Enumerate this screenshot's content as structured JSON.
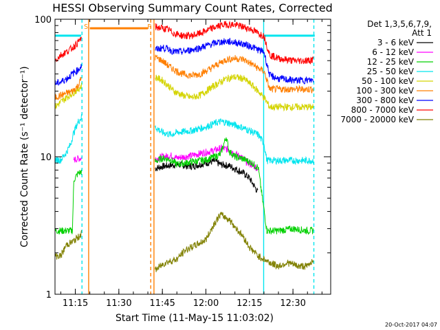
{
  "chart_data": {
    "type": "line",
    "title": "HESSI Observing Summary Count Rates, Corrected",
    "xlabel": "Start Time (11-May-15 11:03:02)",
    "ylabel": "Corrected Count Rate (s⁻¹ detector⁻¹)",
    "y_scale": "log",
    "ylim": [
      1,
      100
    ],
    "xlim_min": [
      8,
      103
    ],
    "x_ticks": [
      {
        "label": "11:15",
        "min": 15
      },
      {
        "label": "11:30",
        "min": 30
      },
      {
        "label": "11:45",
        "min": 45
      },
      {
        "label": "12:00",
        "min": 60
      },
      {
        "label": "12:15",
        "min": 75
      },
      {
        "label": "12:30",
        "min": 90
      }
    ],
    "y_ticks": [
      {
        "label": "1",
        "value": 1
      },
      {
        "label": "10",
        "value": 10
      },
      {
        "label": "100",
        "value": 100
      }
    ],
    "legend_title": [
      "Det 1,3,5,6,7,9,",
      "Att 1"
    ],
    "legend_position": "right",
    "timestamp": "20-Oct-2017 04:07",
    "flags": [
      {
        "label": "S",
        "min": 18.7,
        "color": "#ff8c00"
      },
      {
        "label": "F",
        "min": 40.5,
        "color": "#ff8c00"
      }
    ],
    "vertical_lines": [
      {
        "min": 17.3,
        "style": "dashed",
        "color": "#00e5ee"
      },
      {
        "min": 19.6,
        "style": "solid",
        "color": "#ff7f00"
      },
      {
        "min": 41.0,
        "style": "dashed",
        "color": "#ff7f00"
      },
      {
        "min": 42.1,
        "style": "solid",
        "color": "#ff7f00"
      },
      {
        "min": 79.9,
        "style": "solid",
        "color": "#00e5ee"
      },
      {
        "min": 97.2,
        "style": "dashed",
        "color": "#00e5ee"
      }
    ],
    "segments": [
      {
        "color": "#00e5ee",
        "x": [
          8,
          17
        ],
        "y": [
          76,
          76
        ]
      },
      {
        "color": "#00e5ee",
        "x": [
          80,
          97.5
        ],
        "y": [
          76,
          76
        ]
      },
      {
        "color": "#ff7f00",
        "x": [
          20,
          40
        ],
        "y": [
          86,
          86
        ]
      }
    ],
    "series": [
      {
        "name": "3 - 6 keV",
        "color": "#000000",
        "x": [
          42.5,
          45,
          50,
          55,
          60,
          63,
          65,
          68,
          70,
          73,
          75,
          76.5,
          78
        ],
        "y": [
          8.2,
          8.5,
          8.8,
          8.5,
          9.0,
          9.3,
          8.8,
          8.6,
          8.2,
          7.6,
          7.0,
          6.2,
          5.5
        ]
      },
      {
        "name": "6 - 12 keV",
        "color": "#ff00ff",
        "x": [
          14.5,
          16,
          17.2,
          42.5,
          45,
          48,
          50,
          55,
          60,
          62,
          65,
          68,
          70,
          72,
          74,
          76.5,
          78
        ],
        "y": [
          9.5,
          9.7,
          9.8,
          9.6,
          10.0,
          10.2,
          9.8,
          10.2,
          10.8,
          11.0,
          11.5,
          11.3,
          10.5,
          10.0,
          9.2,
          8.6,
          8.2
        ]
      },
      {
        "name": "12 - 25 keV",
        "color": "#00d000",
        "x": [
          8,
          14,
          14.5,
          16,
          17.2,
          42.5,
          45,
          48,
          50,
          55,
          60,
          65,
          67,
          68,
          70,
          72,
          74,
          76,
          77,
          78,
          81,
          85,
          90,
          95,
          97
        ],
        "y": [
          2.9,
          2.9,
          6.8,
          7.6,
          7.8,
          9.2,
          9.8,
          9.5,
          8.8,
          9.2,
          9.5,
          10.4,
          14.0,
          11.0,
          10.0,
          9.8,
          9.4,
          9.0,
          8.6,
          8.4,
          2.9,
          2.9,
          3.0,
          2.9,
          2.9
        ]
      },
      {
        "name": "25 - 50 keV",
        "color": "#00e5ee",
        "x": [
          8,
          10,
          12,
          13.5,
          14,
          15,
          16,
          17.2,
          42.5,
          45,
          48,
          50,
          55,
          60,
          63,
          65,
          67,
          70,
          72,
          75,
          78,
          80,
          81,
          85,
          90,
          95,
          97
        ],
        "y": [
          9.5,
          9.5,
          10.8,
          12.5,
          14.0,
          16.0,
          18.0,
          19.5,
          16.5,
          15.0,
          14.5,
          15.0,
          15.5,
          16.5,
          17.5,
          18.0,
          17.8,
          17.0,
          16.5,
          15.5,
          14.5,
          12.5,
          9.4,
          9.4,
          9.4,
          9.4,
          9.4
        ]
      },
      {
        "name": "50 - 100 keV",
        "color": "#d4d400",
        "x": [
          8,
          10,
          12,
          14,
          16,
          17.2,
          42.5,
          45,
          47,
          49,
          52,
          55,
          58,
          61,
          64,
          67,
          70,
          73,
          76,
          78,
          80,
          82,
          85,
          90,
          95,
          97
        ],
        "y": [
          23,
          25,
          27,
          29,
          31,
          33,
          38,
          36,
          33,
          30,
          28,
          27,
          28,
          31,
          34,
          37,
          38,
          37,
          33,
          30,
          27,
          23,
          23,
          23,
          23,
          23
        ]
      },
      {
        "name": "100 - 300 keV",
        "color": "#ff7f00",
        "x": [
          8,
          10,
          12,
          14,
          16,
          17.2,
          42.5,
          45,
          47,
          49,
          52,
          55,
          58,
          61,
          64,
          67,
          70,
          73,
          76,
          78,
          80,
          82,
          85,
          90,
          95,
          97
        ],
        "y": [
          27,
          28,
          29,
          30,
          33,
          38,
          53,
          50,
          46,
          43,
          40,
          39,
          40,
          43,
          47,
          51,
          52,
          51,
          47,
          44,
          42,
          31,
          31,
          31,
          31,
          31
        ]
      },
      {
        "name": "300 - 800 keV",
        "color": "#0000ff",
        "x": [
          8,
          10,
          12,
          14,
          16,
          17.2,
          42.5,
          45,
          47,
          49,
          52,
          55,
          58,
          61,
          64,
          67,
          70,
          73,
          76,
          78,
          80,
          82,
          85,
          90,
          95,
          97
        ],
        "y": [
          34,
          35,
          37,
          40,
          43,
          46,
          60,
          62,
          61,
          58,
          58,
          60,
          62,
          65,
          68,
          69,
          68,
          66,
          63,
          60,
          58,
          39,
          37,
          36,
          36,
          36
        ]
      },
      {
        "name": "800 - 7000 keV",
        "color": "#ff0000",
        "x": [
          8,
          10,
          12,
          14,
          16,
          17.2,
          42.5,
          45,
          47,
          49,
          52,
          55,
          58,
          61,
          64,
          67,
          70,
          73,
          76,
          78,
          80,
          82,
          85,
          90,
          95,
          97
        ],
        "y": [
          50,
          55,
          58,
          62,
          68,
          74,
          88,
          86,
          84,
          79,
          76,
          76,
          79,
          84,
          89,
          92,
          91,
          88,
          84,
          79,
          76,
          55,
          52,
          50,
          50,
          51
        ]
      },
      {
        "name": "7000 - 20000 keV",
        "color": "#808000",
        "x": [
          8,
          10,
          12,
          14,
          16,
          17.2,
          42.5,
          46,
          50,
          53,
          55,
          57,
          60,
          63,
          65,
          68,
          70,
          73,
          75,
          78,
          80,
          82,
          85,
          88,
          92,
          95,
          97
        ],
        "y": [
          1.9,
          1.9,
          2.3,
          2.4,
          2.6,
          2.8,
          1.5,
          1.7,
          1.8,
          2.1,
          2.2,
          2.3,
          2.5,
          3.3,
          3.8,
          3.5,
          3.1,
          2.6,
          2.2,
          1.9,
          1.8,
          1.7,
          1.6,
          1.7,
          1.6,
          1.6,
          1.8
        ]
      }
    ]
  }
}
